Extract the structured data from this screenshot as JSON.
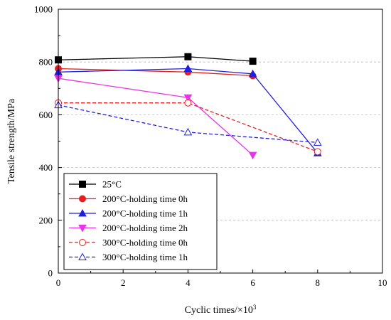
{
  "chart_data": {
    "type": "line",
    "title": "",
    "xlabel": "Cyclic times/×10",
    "xlabel_superscript": "3",
    "ylabel": "Tensile strength/MPa",
    "xlim": [
      0,
      10
    ],
    "ylim": [
      0,
      1000
    ],
    "xticks": [
      0,
      2,
      4,
      6,
      8,
      10
    ],
    "yticks": [
      0,
      200,
      400,
      600,
      800,
      1000
    ],
    "grid": "horizontal dashed at major y ticks",
    "legend_position": "bottom-left",
    "series": [
      {
        "name": "25°C",
        "color": "#000000",
        "line": "solid",
        "marker": "square",
        "filled": true,
        "x": [
          0,
          4,
          6
        ],
        "y": [
          808,
          820,
          803
        ]
      },
      {
        "name": "200°C-holding time 0h",
        "color": "#e81e1e",
        "line": "solid",
        "marker": "circle",
        "filled": true,
        "x": [
          0,
          4,
          6
        ],
        "y": [
          775,
          762,
          748
        ]
      },
      {
        "name": "200°C-holding time 1h",
        "color": "#1f1fe0",
        "line": "solid",
        "marker": "triangle-up",
        "filled": true,
        "x": [
          0,
          4,
          6,
          8
        ],
        "y": [
          762,
          775,
          755,
          455
        ]
      },
      {
        "name": "200°C-holding time 2h",
        "color": "#e835e8",
        "line": "solid",
        "marker": "triangle-down",
        "filled": true,
        "x": [
          0,
          4,
          6
        ],
        "y": [
          738,
          665,
          447
        ]
      },
      {
        "name": "300°C-holding time 0h",
        "color": "#e81e1e",
        "line": "dashed",
        "marker": "circle",
        "filled": false,
        "x": [
          0,
          4,
          8
        ],
        "y": [
          645,
          645,
          460
        ]
      },
      {
        "name": "300°C-holding time 1h",
        "color": "#1f1fe0",
        "line": "dashed",
        "marker": "triangle-up",
        "filled": false,
        "x": [
          0,
          4,
          8
        ],
        "y": [
          637,
          534,
          495
        ]
      }
    ]
  }
}
